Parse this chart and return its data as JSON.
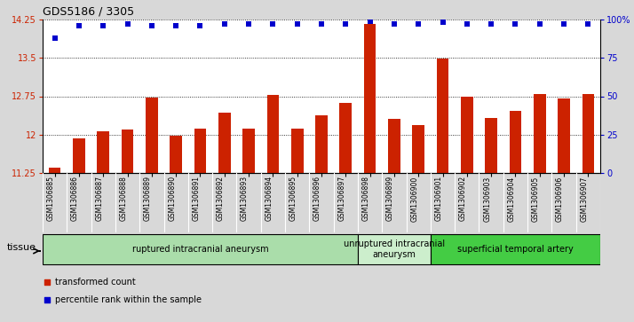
{
  "title": "GDS5186 / 3305",
  "samples": [
    "GSM1306885",
    "GSM1306886",
    "GSM1306887",
    "GSM1306888",
    "GSM1306889",
    "GSM1306890",
    "GSM1306891",
    "GSM1306892",
    "GSM1306893",
    "GSM1306894",
    "GSM1306895",
    "GSM1306896",
    "GSM1306897",
    "GSM1306898",
    "GSM1306899",
    "GSM1306900",
    "GSM1306901",
    "GSM1306902",
    "GSM1306903",
    "GSM1306904",
    "GSM1306905",
    "GSM1306906",
    "GSM1306907"
  ],
  "transformed_count": [
    11.35,
    11.92,
    12.07,
    12.1,
    12.72,
    11.97,
    12.12,
    12.43,
    12.12,
    12.78,
    12.12,
    12.38,
    12.62,
    14.17,
    12.3,
    12.18,
    13.48,
    12.75,
    12.32,
    12.47,
    12.8,
    12.7,
    12.8
  ],
  "percentile_rank": [
    88,
    96,
    96,
    97,
    96,
    96,
    96,
    97,
    97,
    97,
    97,
    97,
    97,
    99,
    97,
    97,
    98,
    97,
    97,
    97,
    97,
    97,
    97
  ],
  "ylim_left": [
    11.25,
    14.25
  ],
  "ylim_right": [
    0,
    100
  ],
  "yticks_left": [
    11.25,
    12.0,
    12.75,
    13.5,
    14.25
  ],
  "yticks_right": [
    0,
    25,
    50,
    75,
    100
  ],
  "ytick_labels_left": [
    "11.25",
    "12",
    "12.75",
    "13.5",
    "14.25"
  ],
  "ytick_labels_right": [
    "0",
    "25",
    "50",
    "75",
    "100%"
  ],
  "bar_color": "#cc2200",
  "dot_color": "#0000cc",
  "background_color": "#d8d8d8",
  "plot_bg_color": "#ffffff",
  "xticklabel_bg": "#d0d0d0",
  "groups": [
    {
      "label": "ruptured intracranial aneurysm",
      "start": 0,
      "end": 13,
      "color": "#aaddaa"
    },
    {
      "label": "unruptured intracranial\naneurysm",
      "start": 13,
      "end": 16,
      "color": "#cceecc"
    },
    {
      "label": "superficial temporal artery",
      "start": 16,
      "end": 23,
      "color": "#44cc44"
    }
  ],
  "tissue_label": "tissue",
  "legend_bar_label": "transformed count",
  "legend_dot_label": "percentile rank within the sample",
  "title_fontsize": 9,
  "tick_fontsize": 7,
  "label_fontsize": 7
}
